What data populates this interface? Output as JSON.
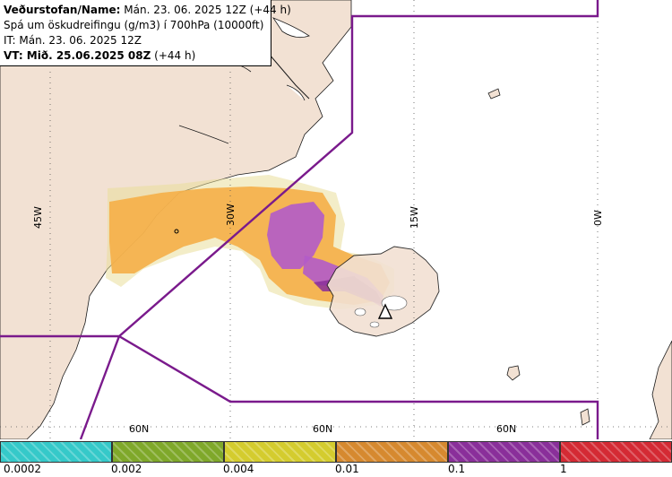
{
  "info": {
    "line1_bold": "Veðurstofan/Name:",
    "line1_rest": " Mán. 23. 06. 2025 12Z (+44 h)",
    "line2": "Spá um öskudreifingu (g/m3) í 700hPa (10000ft)",
    "line3": "IT: Mán. 23. 06. 2025 12Z",
    "line4_bold": "VT: Mið. 25.06.2025 08Z",
    "line4_rest": " (+44 h)"
  },
  "map_labels": {
    "lon_45w": "45W",
    "lon_30w": "30W",
    "lon_15w": "15W",
    "lon_0w": "0W",
    "lat_60n": "60N"
  },
  "legend": {
    "ticks": [
      "0.0002",
      "0.002",
      "0.004",
      "0.01",
      "0.1",
      "1"
    ],
    "colors": [
      "#35c9c9",
      "#7fa82a",
      "#d4cc2e",
      "#d6892f",
      "#8a2f9a",
      "#d42a34"
    ]
  },
  "colors": {
    "land": "#f2e1d3",
    "sea": "#ffffff",
    "zone_border": "#7a1a8c",
    "ash_low": "#f5b04a",
    "ash_high": "#b35bc9",
    "ash_edge": "#e8e07a"
  },
  "volcano_marker": "triangle-icon"
}
